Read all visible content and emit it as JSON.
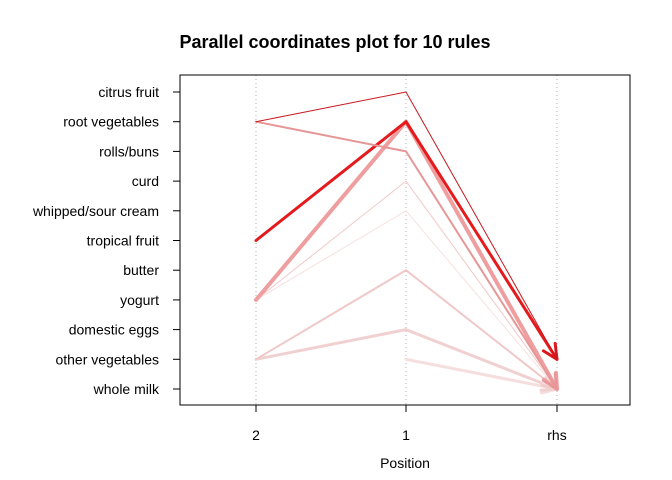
{
  "chart_data": {
    "type": "parallel-coordinates",
    "title": "Parallel coordinates plot for 10 rules",
    "xlabel": "Position",
    "axes": [
      "2",
      "1",
      "rhs"
    ],
    "items": [
      "citrus fruit",
      "root vegetables",
      "rolls/buns",
      "curd",
      "whipped/sour cream",
      "tropical fruit",
      "butter",
      "yogurt",
      "domestic eggs",
      "other vegetables",
      "whole milk"
    ],
    "grid": true,
    "rules": [
      {
        "path": [
          "root vegetables",
          "citrus fruit",
          "other vegetables"
        ],
        "color": "#c8181e",
        "width": 1
      },
      {
        "path": [
          "root vegetables",
          "rolls/buns",
          "whole milk"
        ],
        "color": "#e69696",
        "width": 2
      },
      {
        "path": [
          "tropical fruit",
          "root vegetables",
          "other vegetables"
        ],
        "color": "#e41a1c",
        "width": 3
      },
      {
        "path": [
          "yogurt",
          "root vegetables",
          "whole milk"
        ],
        "color": "#ef9ea0",
        "width": 4
      },
      {
        "path": [
          "yogurt",
          "curd",
          "whole milk"
        ],
        "color": "#f2c8c8",
        "width": 1
      },
      {
        "path": [
          "yogurt",
          "whipped/sour cream",
          "whole milk"
        ],
        "color": "#f8e0e0",
        "width": 1
      },
      {
        "path": [
          "other vegetables",
          "butter",
          "whole milk"
        ],
        "color": "#f0c8c8",
        "width": 2
      },
      {
        "path": [
          "other vegetables",
          "domestic eggs",
          "whole milk"
        ],
        "color": "#f0d0d0",
        "width": 3
      },
      {
        "path": [
          "root vegetables",
          "whole milk"
        ],
        "color": "#f2d6d6",
        "width": 2
      },
      {
        "path": [
          "other vegetables",
          "whole milk"
        ],
        "color": "#f5dede",
        "width": 3
      }
    ]
  }
}
